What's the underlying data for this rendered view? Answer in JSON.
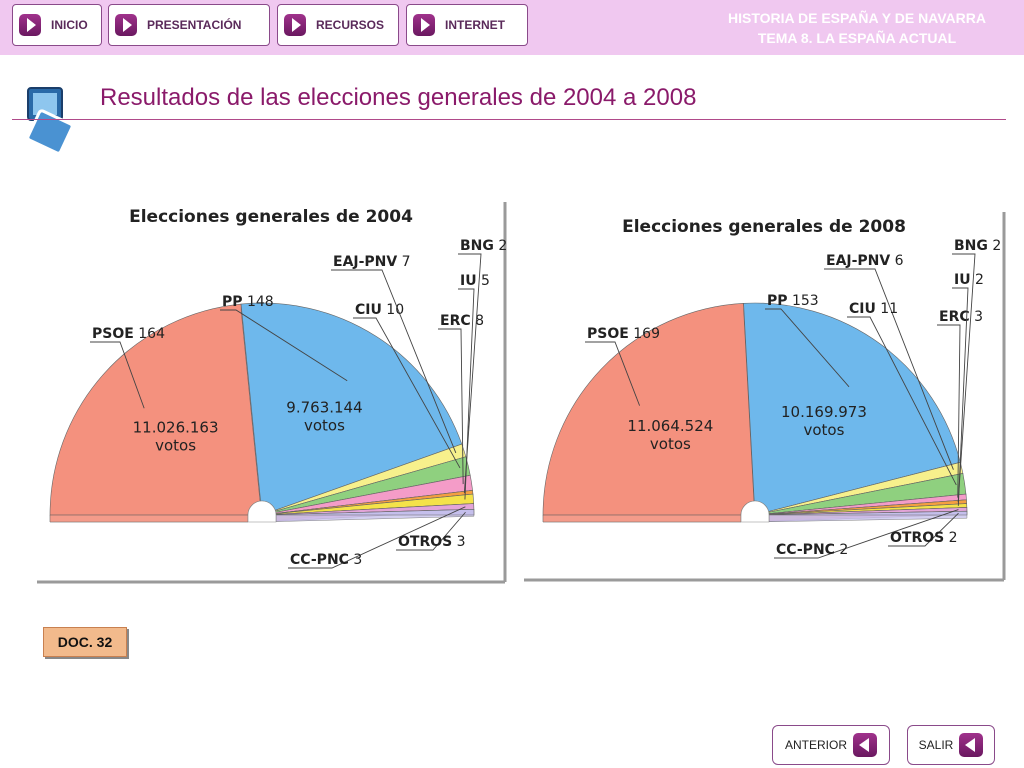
{
  "header": {
    "nav": [
      {
        "label": "INICIO",
        "icon": "arrow-right-icon"
      },
      {
        "label": "PRESENTACIÓN",
        "icon": "arrow-right-icon"
      },
      {
        "label": "RECURSOS",
        "icon": "arrow-right-icon"
      },
      {
        "label": "INTERNET",
        "icon": "arrow-right-icon"
      }
    ],
    "title_line1": "HISTORIA DE ESPAÑA Y DE NAVARRA",
    "title_line2": "TEMA 8. LA ESPAÑA ACTUAL"
  },
  "page": {
    "title": "Resultados de las elecciones generales de 2004 a 2008",
    "doc_label": "DOC. 32"
  },
  "footer": {
    "prev_label": "ANTERIOR",
    "exit_label": "SALIR",
    "icon": "arrow-left-icon"
  },
  "colors": {
    "topbar": "#f0c8f0",
    "title": "#8a1a6a",
    "PSOE": "#f4917e",
    "PP": "#6eb8ec",
    "EAJ-PNV": "#f7f08c",
    "CIU": "#8fd07f",
    "ERC": "#f49cc8",
    "BNG": "#f59f40",
    "IU": "#f4e24a",
    "CC-PNC": "#e3a4d8",
    "OTROS": "#c5bfec"
  },
  "chart_data": [
    {
      "type": "pie",
      "title": "Elecciones generales de 2004",
      "categories": [
        "PSOE",
        "PP",
        "EAJ-PNV",
        "CIU",
        "ERC",
        "BNG",
        "IU",
        "CC-PNC",
        "OTROS"
      ],
      "values": [
        164,
        148,
        7,
        10,
        8,
        2,
        5,
        3,
        3
      ],
      "annotations": [
        {
          "party": "PSOE",
          "votes": "11.026.163",
          "unit": "votos"
        },
        {
          "party": "PP",
          "votes": "9.763.144",
          "unit": "votos"
        }
      ]
    },
    {
      "type": "pie",
      "title": "Elecciones generales de 2008",
      "categories": [
        "PSOE",
        "PP",
        "EAJ-PNV",
        "CIU",
        "ERC",
        "BNG",
        "IU",
        "CC-PNC",
        "OTROS"
      ],
      "values": [
        169,
        153,
        6,
        11,
        3,
        2,
        2,
        2,
        2
      ],
      "annotations": [
        {
          "party": "PSOE",
          "votes": "11.064.524",
          "unit": "votos"
        },
        {
          "party": "PP",
          "votes": "10.169.973",
          "unit": "votos"
        }
      ]
    }
  ]
}
